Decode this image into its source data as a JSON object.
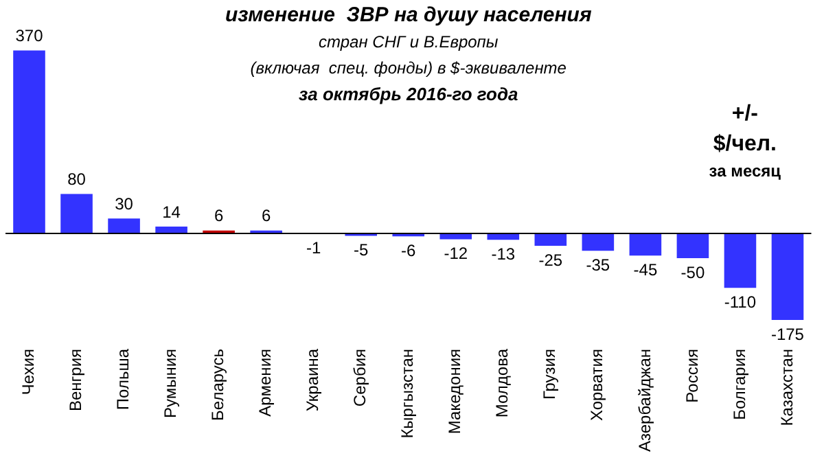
{
  "chart_data": {
    "type": "bar",
    "title": "изменение  ЗВР на душу населения",
    "subtitle": "стран СНГ и В.Европы\n(включая  спец. фонды) в $-эквиваленте\nза октябрь 2016-го года",
    "categories": [
      "Чехия",
      "Венгрия",
      "Польша",
      "Румыния",
      "Беларусь",
      "Армения",
      "Украина",
      "Сербия",
      "Кыргызстан",
      "Македония",
      "Молдова",
      "Грузия",
      "Хорватия",
      "Азербайджан",
      "Россия",
      "Болгария",
      "Казахстан"
    ],
    "values": [
      370,
      80,
      30,
      14,
      6,
      6,
      -1,
      -5,
      -6,
      -12,
      -13,
      -25,
      -35,
      -45,
      -50,
      -110,
      -175
    ],
    "colors": [
      "#3333ff",
      "#3333ff",
      "#3333ff",
      "#3333ff",
      "#c00000",
      "#3333ff",
      "#3333ff",
      "#3333ff",
      "#3333ff",
      "#3333ff",
      "#3333ff",
      "#3333ff",
      "#3333ff",
      "#3333ff",
      "#3333ff",
      "#3333ff",
      "#3333ff"
    ],
    "data_labels": true,
    "grid": false,
    "legend": false,
    "annotations": [
      "+/-",
      "$/чел.",
      "за месяц"
    ]
  }
}
